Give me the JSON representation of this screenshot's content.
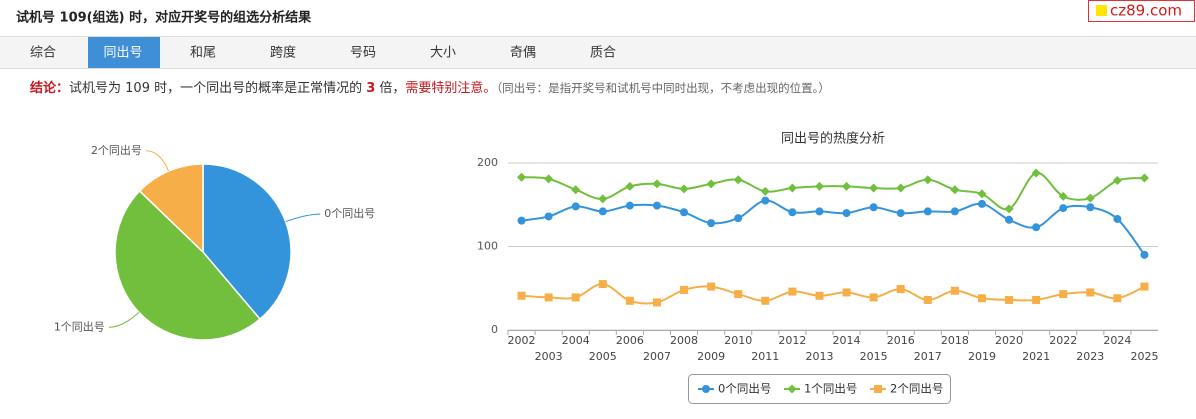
{
  "header": {
    "title": "试机号 109(组选) 时，对应开奖号的组选分析结果",
    "logo": "cz89.com"
  },
  "tabs": [
    "综合",
    "同出号",
    "和尾",
    "跨度",
    "号码",
    "大小",
    "奇偶",
    "质合"
  ],
  "active_tab": 1,
  "conclusion": {
    "label": "结论：",
    "text1": "试机号为 109 时，一个同出号的概率是正常情况的 ",
    "times": "3",
    "text2": " 倍，",
    "warning": "需要特别注意。",
    "note": "（同出号：是指开奖号和试机号中同时出现，不考虑出现的位置。）"
  },
  "chart_data": [
    {
      "type": "pie",
      "categories": [
        "0个同出号",
        "1个同出号",
        "2个同出号"
      ],
      "values": [
        38.8,
        48.4,
        12.8
      ],
      "colors": [
        "#3393db",
        "#71bf3c",
        "#f6ae48"
      ]
    },
    {
      "type": "line",
      "title": "同出号的热度分析",
      "categories": [
        "2002",
        "2003",
        "2004",
        "2005",
        "2006",
        "2007",
        "2008",
        "2009",
        "2010",
        "2011",
        "2012",
        "2013",
        "2014",
        "2015",
        "2016",
        "2017",
        "2018",
        "2019",
        "2020",
        "2021",
        "2022",
        "2023",
        "2024",
        "2025"
      ],
      "series": [
        {
          "name": "0个同出号",
          "color": "#3393db",
          "marker": "circle",
          "values": [
            131,
            136,
            148,
            142,
            149,
            149,
            141,
            128,
            134,
            155,
            141,
            142,
            140,
            147,
            140,
            142,
            142,
            151,
            132,
            123,
            146,
            147,
            133,
            90
          ]
        },
        {
          "name": "1个同出号",
          "color": "#71bf3c",
          "marker": "diamond",
          "values": [
            183,
            181,
            168,
            157,
            172,
            175,
            169,
            175,
            180,
            166,
            170,
            172,
            172,
            170,
            170,
            180,
            168,
            163,
            145,
            188,
            160,
            158,
            179,
            182
          ]
        },
        {
          "name": "2个同出号",
          "color": "#f6ae48",
          "marker": "square",
          "values": [
            41,
            39,
            39,
            55,
            35,
            33,
            48,
            52,
            43,
            35,
            46,
            41,
            45,
            39,
            49,
            36,
            47,
            38,
            36,
            36,
            43,
            45,
            38,
            52
          ]
        }
      ],
      "ylim": [
        0,
        200
      ],
      "yticks": [
        0,
        100,
        200
      ],
      "grid": true,
      "legend": "bottom"
    }
  ]
}
